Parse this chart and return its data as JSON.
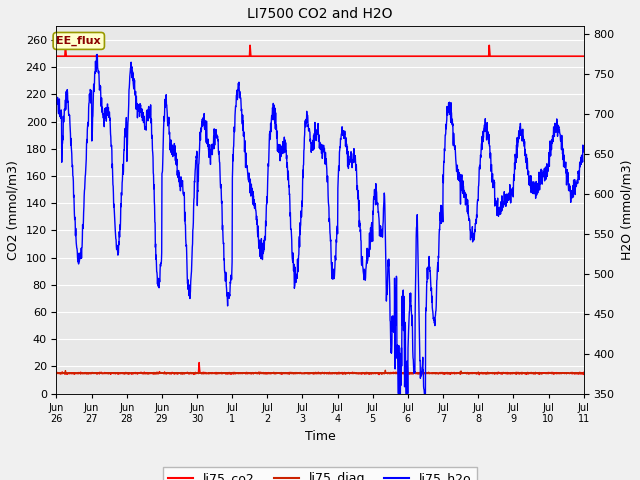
{
  "title": "LI7500 CO2 and H2O",
  "xlabel": "Time",
  "ylabel_left": "CO2 (mmol/m3)",
  "ylabel_right": "H2O (mmol/m3)",
  "ylim_left": [
    0,
    270
  ],
  "ylim_right": [
    350,
    810
  ],
  "fig_bg_color": "#f0f0f0",
  "plot_bg_color": "#e8e8e8",
  "grid_color": "white",
  "co2_color": "#ff0000",
  "diag_color": "#cc2200",
  "h2o_color": "#0000ff",
  "ee_flux_label": "EE_flux",
  "ee_flux_bg": "#ffffcc",
  "ee_flux_border": "#999900",
  "legend_labels": [
    "li75_co2",
    "li75_diag",
    "li75_h2o"
  ],
  "x_tick_labels": [
    "Jun\n26",
    "Jun\n27",
    "Jun\n28",
    "Jun\n29",
    "Jun\n30",
    "Jul\n1",
    "Jul\n2",
    "Jul\n3",
    "Jul\n4",
    "Jul\n5",
    "Jul\n6",
    "Jul\n7",
    "Jul\n8",
    "Jul\n9",
    "Jul\n10",
    "Jul\n11"
  ],
  "x_tick_positions": [
    0,
    1,
    2,
    3,
    4,
    5,
    6,
    7,
    8,
    9,
    10,
    11,
    12,
    13,
    14,
    15
  ],
  "n_points": 2000,
  "title_fontsize": 10,
  "axis_fontsize": 9,
  "tick_fontsize": 8
}
